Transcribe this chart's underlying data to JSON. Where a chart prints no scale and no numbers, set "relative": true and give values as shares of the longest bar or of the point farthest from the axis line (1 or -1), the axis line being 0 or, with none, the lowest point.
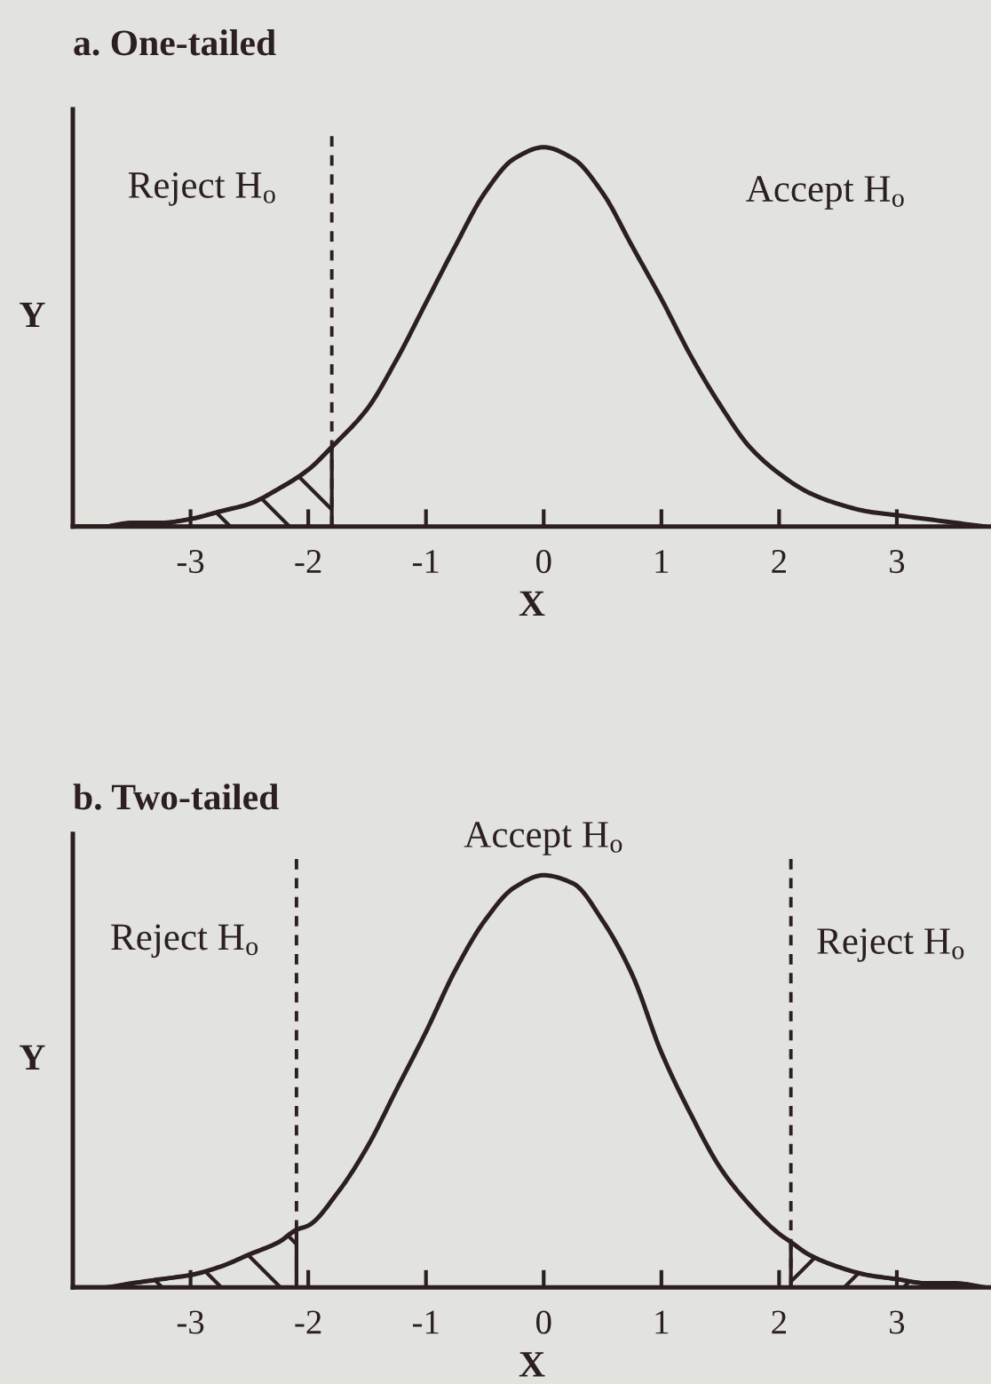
{
  "chart_data": [
    {
      "type": "line",
      "title": "a. One-tailed",
      "xlabel": "X",
      "ylabel": "Y",
      "relative": true,
      "tick_labels": "x",
      "xlim": [
        -4,
        3.8
      ],
      "xticks": [
        -3,
        -2,
        -1,
        0,
        1,
        2,
        3
      ],
      "series": [
        {
          "color": "#2b1f1f",
          "x": [
            -4,
            -3.75,
            -3.5,
            -3.25,
            -3,
            -2.75,
            -2.5,
            -2.25,
            -2,
            -1.8,
            -1.5,
            -1.25,
            -1,
            -0.75,
            -0.5,
            -0.25,
            0,
            0.25,
            0.5,
            0.75,
            1,
            1.25,
            1.5,
            1.75,
            2,
            2.25,
            2.5,
            2.75,
            3,
            3.25,
            3.5,
            3.75
          ],
          "values": [
            0,
            0,
            0.01,
            0.01,
            0.02,
            0.04,
            0.06,
            0.1,
            0.15,
            0.21,
            0.31,
            0.44,
            0.59,
            0.74,
            0.88,
            0.97,
            1,
            0.97,
            0.88,
            0.74,
            0.6,
            0.45,
            0.32,
            0.21,
            0.14,
            0.09,
            0.06,
            0.04,
            0.03,
            0.02,
            0.01,
            0
          ]
        },
        {
          "type": "area",
          "color": "#2b1f1f",
          "x": [
            -4,
            -3.75,
            -3.5,
            -3.25,
            -3,
            -2.75,
            -2.5,
            -2.25,
            -2,
            -1.8
          ],
          "values": [
            0,
            0,
            0.01,
            0.01,
            0.02,
            0.04,
            0.06,
            0.1,
            0.15,
            0.21
          ]
        }
      ],
      "ref_lines": [
        {
          "axis": "x",
          "value": -1.8,
          "line_style": "dashed",
          "color": "#2b1f1f"
        }
      ],
      "annotations": [
        "Reject H$_{o}$",
        "Accept H$_{o}$"
      ]
    },
    {
      "type": "line",
      "title": "b. Two-tailed",
      "xlabel": "X",
      "ylabel": "Y",
      "relative": true,
      "tick_labels": "x",
      "xlim": [
        -4,
        3.8
      ],
      "xticks": [
        -3,
        -2,
        -1,
        0,
        1,
        2,
        3
      ],
      "series": [
        {
          "color": "#2b1f1f",
          "x": [
            -4,
            -3.75,
            -3.5,
            -3.25,
            -3,
            -2.75,
            -2.5,
            -2.25,
            -2.1,
            -2,
            -1.75,
            -1.5,
            -1.25,
            -1,
            -0.75,
            -0.5,
            -0.25,
            0,
            0.25,
            0.5,
            0.75,
            1,
            1.25,
            1.5,
            1.75,
            2,
            2.1,
            2.25,
            2.5,
            2.75,
            3,
            3.25,
            3.5,
            3.75
          ],
          "values": [
            0,
            0,
            0.01,
            0.02,
            0.03,
            0.05,
            0.08,
            0.11,
            0.14,
            0.15,
            0.23,
            0.34,
            0.48,
            0.62,
            0.77,
            0.89,
            0.97,
            1,
            0.98,
            0.89,
            0.76,
            0.57,
            0.42,
            0.29,
            0.2,
            0.13,
            0.11,
            0.08,
            0.05,
            0.03,
            0.02,
            0.01,
            0.01,
            0
          ]
        },
        {
          "type": "area",
          "color": "#2b1f1f",
          "x": [
            -4,
            -3.75,
            -3.5,
            -3.25,
            -3,
            -2.75,
            -2.5,
            -2.25,
            -2.1
          ],
          "values": [
            0,
            0,
            0.01,
            0.02,
            0.03,
            0.05,
            0.08,
            0.11,
            0.14
          ]
        },
        {
          "type": "area",
          "color": "#2b1f1f",
          "x": [
            2.1,
            2.25,
            2.5,
            2.75,
            3,
            3.25,
            3.5,
            3.75
          ],
          "values": [
            0.11,
            0.08,
            0.05,
            0.03,
            0.02,
            0.01,
            0.01,
            0
          ]
        }
      ],
      "ref_lines": [
        {
          "axis": "x",
          "value": -2.1,
          "line_style": "dashed",
          "color": "#2b1f1f"
        },
        {
          "axis": "x",
          "value": 2.1,
          "line_style": "dashed",
          "color": "#2b1f1f"
        }
      ],
      "annotations": [
        "Reject H$_{o}$",
        "Accept H$_{o}$",
        "Reject H$_{o}$"
      ]
    }
  ]
}
